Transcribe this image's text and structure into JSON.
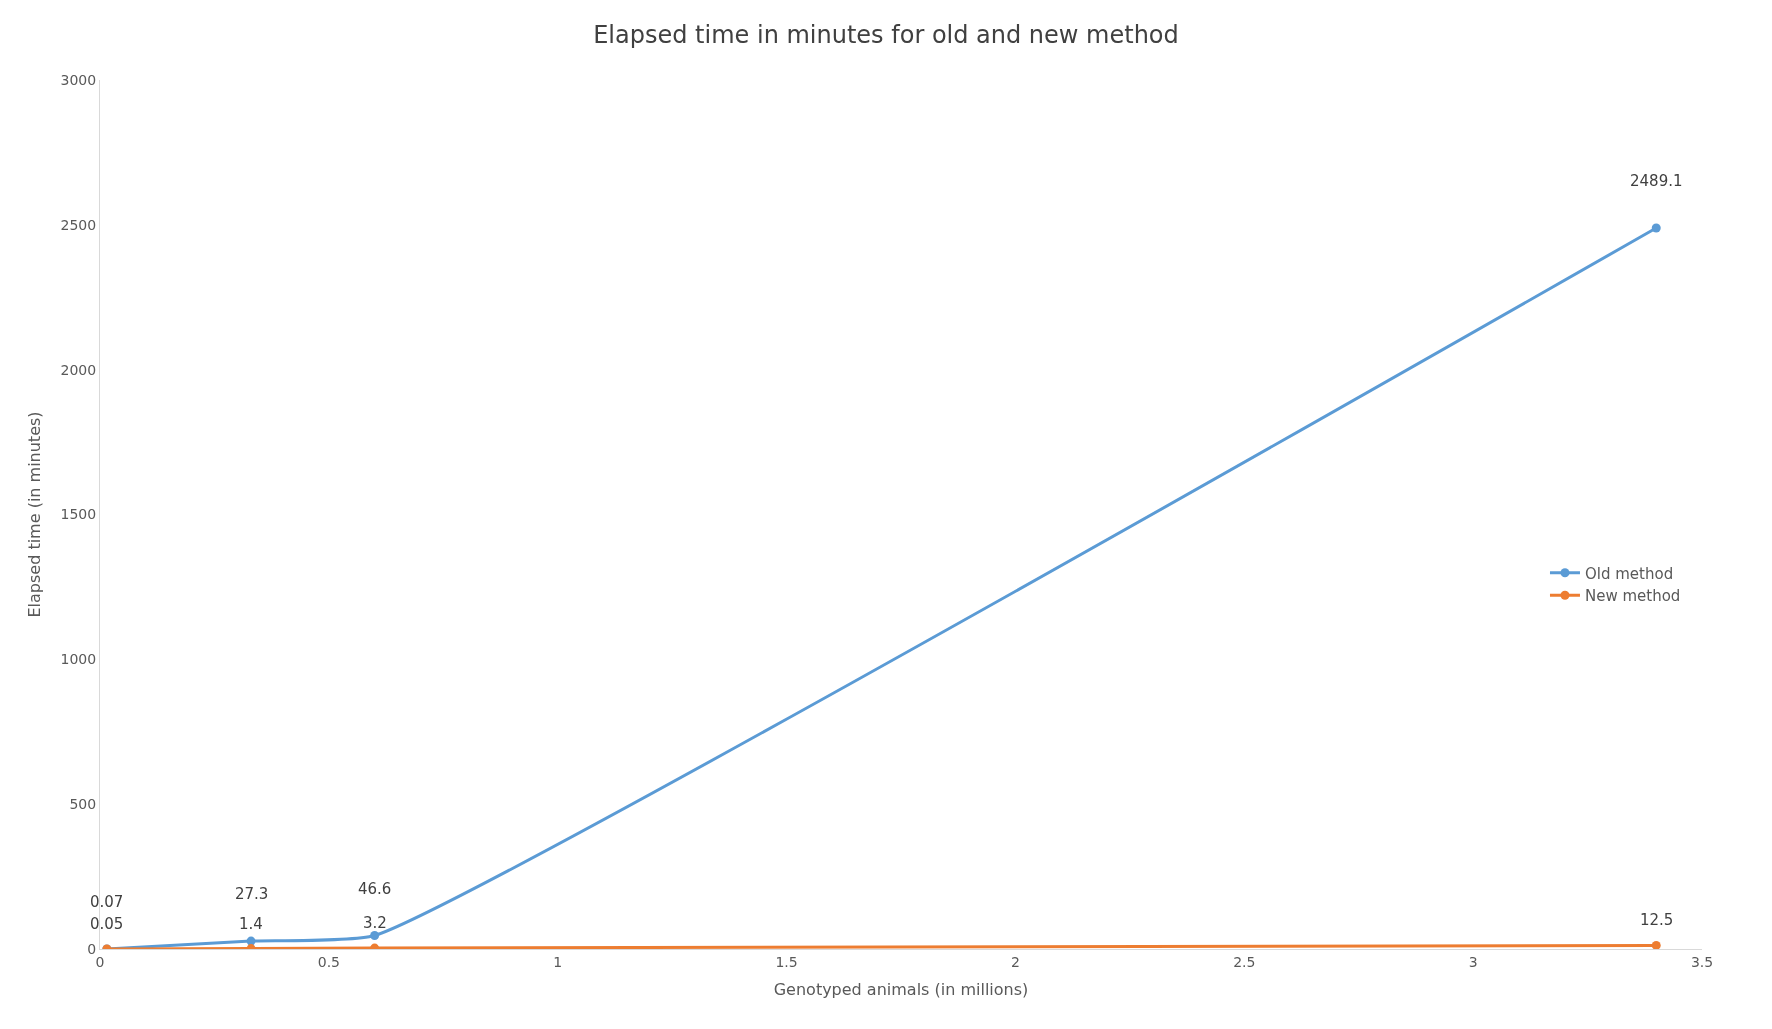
{
  "chart_data": {
    "type": "line",
    "title": "Elapsed time in minutes for old and new method",
    "xlabel": "Genotyped animals (in millions)",
    "ylabel": "Elapsed time (in minutes)",
    "x": [
      0.015,
      0.33,
      0.6,
      3.4
    ],
    "series": [
      {
        "name": "Old method",
        "color": "#5b9bd5",
        "values": [
          0.07,
          27.3,
          46.6,
          2489.1
        ]
      },
      {
        "name": "New method",
        "color": "#ed7d31",
        "values": [
          0.05,
          1.4,
          3.2,
          12.5
        ]
      }
    ],
    "data_labels": true,
    "marker": "circle",
    "line_style": "solid",
    "legend": "right",
    "xlim": [
      0,
      3.5
    ],
    "xticks": [
      0,
      0.5,
      1,
      1.5,
      2,
      2.5,
      3,
      3.5
    ],
    "ylim": [
      0,
      3000
    ],
    "yticks": [
      0,
      500,
      1000,
      1500,
      2000,
      2500,
      3000
    ]
  }
}
